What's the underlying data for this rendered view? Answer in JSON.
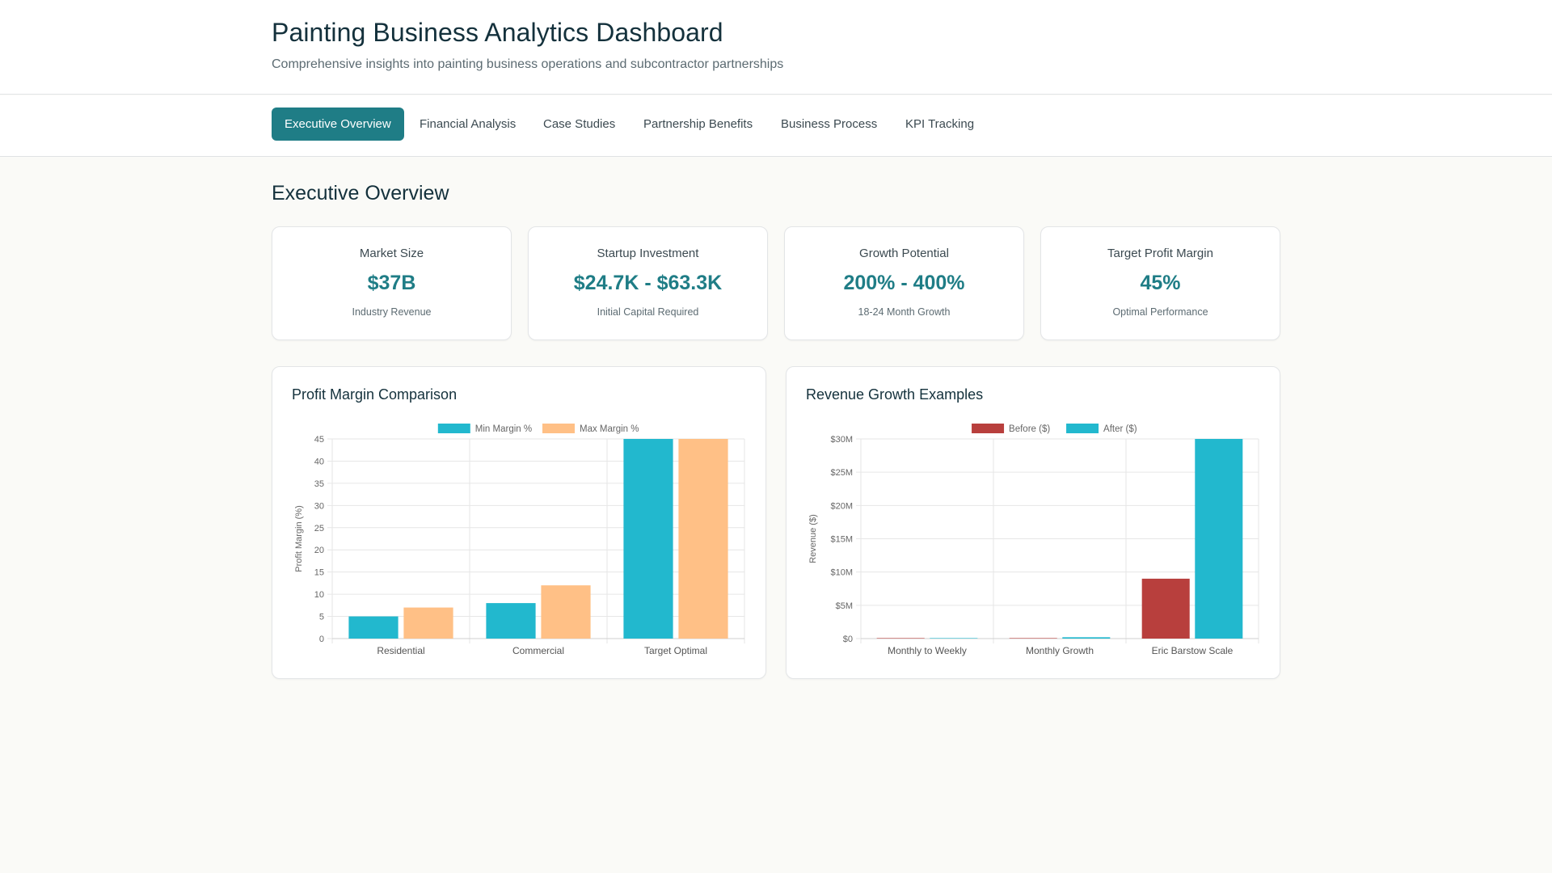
{
  "header": {
    "title": "Painting Business Analytics Dashboard",
    "subtitle": "Comprehensive insights into painting business operations and subcontractor partnerships"
  },
  "nav": {
    "tabs": [
      {
        "label": "Executive Overview",
        "active": true
      },
      {
        "label": "Financial Analysis",
        "active": false
      },
      {
        "label": "Case Studies",
        "active": false
      },
      {
        "label": "Partnership Benefits",
        "active": false
      },
      {
        "label": "Business Process",
        "active": false
      },
      {
        "label": "KPI Tracking",
        "active": false
      }
    ]
  },
  "main": {
    "section_title": "Executive Overview",
    "kpis": [
      {
        "label": "Market Size",
        "value": "$37B",
        "sub": "Industry Revenue"
      },
      {
        "label": "Startup Investment",
        "value": "$24.7K - $63.3K",
        "sub": "Initial Capital Required"
      },
      {
        "label": "Growth Potential",
        "value": "200% - 400%",
        "sub": "18-24 Month Growth"
      },
      {
        "label": "Target Profit Margin",
        "value": "45%",
        "sub": "Optimal Performance"
      }
    ]
  },
  "colors": {
    "accent": "#1f7d86",
    "cyan": "#22b8ce",
    "peach": "#ffc086",
    "red": "#b83f3d"
  },
  "chart_data": [
    {
      "type": "bar",
      "title": "Profit Margin Comparison",
      "categories": [
        "Residential",
        "Commercial",
        "Target Optimal"
      ],
      "series": [
        {
          "name": "Min Margin %",
          "values": [
            5,
            8,
            45
          ],
          "color": "#22b8ce"
        },
        {
          "name": "Max Margin %",
          "values": [
            7,
            12,
            45
          ],
          "color": "#ffc086"
        }
      ],
      "xlabel": "",
      "ylabel": "Profit Margin (%)",
      "ylim": [
        0,
        45
      ],
      "yticks": [
        0,
        5,
        10,
        15,
        20,
        25,
        30,
        35,
        40,
        45
      ],
      "ytick_labels": [
        "0",
        "5",
        "10",
        "15",
        "20",
        "25",
        "30",
        "35",
        "40",
        "45"
      ],
      "legend": "top-center",
      "grid": true
    },
    {
      "type": "bar",
      "title": "Revenue Growth Examples",
      "categories": [
        "Monthly to Weekly",
        "Monthly Growth",
        "Eric Barstow Scale"
      ],
      "series": [
        {
          "name": "Before ($)",
          "values": [
            10000,
            8000,
            9000000
          ],
          "color": "#b83f3d"
        },
        {
          "name": "After ($)",
          "values": [
            40000,
            200000,
            30000000
          ],
          "color": "#22b8ce"
        }
      ],
      "xlabel": "",
      "ylabel": "Revenue ($)",
      "ylim": [
        0,
        30000000
      ],
      "yticks": [
        0,
        5000000,
        10000000,
        15000000,
        20000000,
        25000000,
        30000000
      ],
      "ytick_labels": [
        "$0",
        "$5M",
        "$10M",
        "$15M",
        "$20M",
        "$25M",
        "$30M"
      ],
      "legend": "top-center",
      "grid": true
    }
  ]
}
